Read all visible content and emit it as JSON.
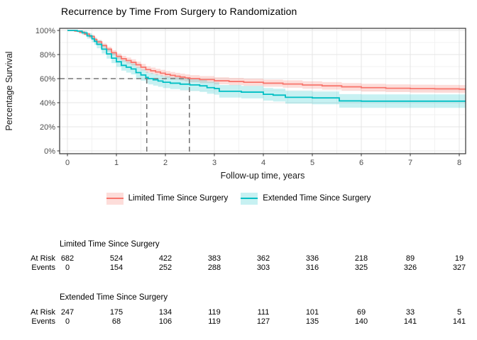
{
  "title": "Recurrence by Time From Surgery to Randomization",
  "chart_data": {
    "type": "line",
    "subtype": "kaplan-meier-step",
    "title": "Recurrence by Time From Surgery to Randomization",
    "xlabel": "Follow-up time, years",
    "ylabel": "Percentage Survival",
    "xlim": [
      0,
      8
    ],
    "ylim": [
      0,
      100
    ],
    "grid": "on",
    "x_ticks": [
      0,
      1,
      2,
      3,
      4,
      5,
      6,
      7,
      8
    ],
    "x_tick_labels": [
      "0",
      "1",
      "2",
      "3",
      "4",
      "5",
      "6",
      "7",
      "8"
    ],
    "y_ticks": [
      0,
      20,
      40,
      60,
      80,
      100
    ],
    "y_tick_labels": [
      "0%",
      "20%",
      "40%",
      "60%",
      "80%",
      "100%"
    ],
    "legend_position": "bottom",
    "annotations": {
      "hline_percent": 60,
      "hline_x_end_years": 2.49,
      "vline_years": [
        1.62,
        2.49
      ],
      "line_color": "#757575"
    },
    "colors": {
      "limited": "#F8766D",
      "extended": "#00BFC4"
    },
    "series": [
      {
        "name": "Limited Time Since Surgery",
        "color": "#F8766D",
        "band_color": "rgba(248,118,109,0.25)",
        "points_tvlh": [
          [
            0,
            100,
            100,
            100
          ],
          [
            0.15,
            99.5,
            98.8,
            100
          ],
          [
            0.25,
            98.5,
            97.5,
            99.4
          ],
          [
            0.35,
            97,
            95.8,
            98.2
          ],
          [
            0.45,
            95,
            93.6,
            96.4
          ],
          [
            0.55,
            92.5,
            91,
            94
          ],
          [
            0.6,
            90.5,
            88.9,
            92.1
          ],
          [
            0.7,
            87.5,
            85.7,
            89.3
          ],
          [
            0.8,
            84.5,
            82.5,
            86.5
          ],
          [
            0.9,
            81.5,
            79.4,
            83.6
          ],
          [
            1.0,
            78.5,
            76.2,
            80.8
          ],
          [
            1.1,
            76.5,
            74.1,
            78.9
          ],
          [
            1.2,
            75,
            72.5,
            77.5
          ],
          [
            1.3,
            73.5,
            71,
            76
          ],
          [
            1.4,
            71.5,
            68.9,
            74.1
          ],
          [
            1.5,
            69.5,
            66.8,
            72.2
          ],
          [
            1.6,
            67.5,
            64.8,
            70.2
          ],
          [
            1.7,
            66.5,
            63.8,
            69.2
          ],
          [
            1.8,
            65.5,
            62.8,
            68.2
          ],
          [
            1.9,
            64.5,
            61.7,
            67.3
          ],
          [
            2.0,
            63.5,
            60.7,
            66.3
          ],
          [
            2.1,
            62.7,
            59.9,
            65.5
          ],
          [
            2.2,
            62,
            59.2,
            64.8
          ],
          [
            2.3,
            61.3,
            58.4,
            64.2
          ],
          [
            2.4,
            60.6,
            57.7,
            63.5
          ],
          [
            2.5,
            60,
            57.1,
            62.9
          ],
          [
            2.7,
            59.2,
            56.3,
            62.1
          ],
          [
            3.0,
            58.2,
            55.3,
            61.1
          ],
          [
            3.3,
            57.6,
            54.6,
            60.6
          ],
          [
            3.6,
            57,
            54,
            60
          ],
          [
            4.0,
            56.2,
            53.2,
            59.2
          ],
          [
            4.4,
            55.5,
            52.4,
            58.6
          ],
          [
            4.8,
            54.7,
            51.6,
            57.8
          ],
          [
            5.2,
            54,
            50.9,
            57.1
          ],
          [
            5.6,
            53.2,
            50.1,
            56.3
          ],
          [
            6.0,
            52.5,
            49.3,
            55.7
          ],
          [
            6.5,
            52,
            48.8,
            55.2
          ],
          [
            7.0,
            51.7,
            48.4,
            55
          ],
          [
            7.5,
            51.5,
            48.2,
            54.8
          ],
          [
            8.0,
            51.3,
            48,
            54.6
          ]
        ]
      },
      {
        "name": "Extended Time Since Surgery",
        "color": "#00BFC4",
        "band_color": "rgba(0,191,196,0.22)",
        "points_tvlh": [
          [
            0,
            100,
            100,
            100
          ],
          [
            0.2,
            99.5,
            98.4,
            100
          ],
          [
            0.3,
            98,
            96.3,
            99.7
          ],
          [
            0.4,
            95.5,
            93.2,
            97.8
          ],
          [
            0.5,
            93,
            90.2,
            95.8
          ],
          [
            0.55,
            91,
            88,
            94
          ],
          [
            0.6,
            88.5,
            85.2,
            91.8
          ],
          [
            0.7,
            84.5,
            80.9,
            88.1
          ],
          [
            0.8,
            80.5,
            76.6,
            84.4
          ],
          [
            0.9,
            77,
            72.9,
            81.1
          ],
          [
            1.0,
            74,
            69.7,
            78.3
          ],
          [
            1.1,
            71,
            66.6,
            75.4
          ],
          [
            1.2,
            69.5,
            65,
            74
          ],
          [
            1.3,
            68,
            63.5,
            72.5
          ],
          [
            1.4,
            65,
            60.4,
            69.6
          ],
          [
            1.5,
            63,
            58.3,
            67.7
          ],
          [
            1.6,
            61,
            56.3,
            65.7
          ],
          [
            1.65,
            60,
            55.2,
            64.8
          ],
          [
            1.75,
            59,
            54.2,
            63.8
          ],
          [
            1.85,
            58,
            53.2,
            62.8
          ],
          [
            1.95,
            57,
            52.1,
            61.9
          ],
          [
            2.1,
            56.2,
            51.3,
            61.1
          ],
          [
            2.3,
            55.4,
            50.4,
            60.4
          ],
          [
            2.5,
            54.8,
            49.8,
            59.8
          ],
          [
            2.7,
            54,
            49,
            59
          ],
          [
            2.85,
            52.5,
            47.4,
            57.6
          ],
          [
            3.0,
            51.8,
            46.7,
            56.9
          ],
          [
            3.1,
            49.5,
            44.3,
            54.7
          ],
          [
            3.55,
            48.8,
            43.6,
            54
          ],
          [
            4.0,
            47,
            41.8,
            52.2
          ],
          [
            4.2,
            46.3,
            41,
            51.6
          ],
          [
            4.45,
            44.5,
            39.2,
            49.8
          ],
          [
            5.0,
            44,
            38.7,
            49.3
          ],
          [
            5.55,
            41.5,
            35.9,
            47.1
          ],
          [
            6.0,
            41.3,
            35.7,
            46.9
          ],
          [
            8.0,
            41.3,
            35.7,
            46.9
          ]
        ]
      }
    ]
  },
  "legend": {
    "items": [
      {
        "label": "Limited Time Since Surgery"
      },
      {
        "label": "Extended Time Since Surgery"
      }
    ]
  },
  "risk_tables": {
    "time_points": [
      0,
      1,
      2,
      3,
      4,
      5,
      6,
      7,
      8
    ],
    "row_labels": {
      "at_risk": "At Risk",
      "events": "Events"
    },
    "groups": [
      {
        "name": "Limited Time Since Surgery",
        "at_risk": [
          "682",
          "524",
          "422",
          "383",
          "362",
          "336",
          "218",
          "89",
          "19"
        ],
        "events": [
          "0",
          "154",
          "252",
          "288",
          "303",
          "316",
          "325",
          "326",
          "327"
        ]
      },
      {
        "name": "Extended Time Since Surgery",
        "at_risk": [
          "247",
          "175",
          "134",
          "119",
          "111",
          "101",
          "69",
          "33",
          "5"
        ],
        "events": [
          "0",
          "68",
          "106",
          "119",
          "127",
          "135",
          "140",
          "141",
          "141"
        ]
      }
    ]
  }
}
